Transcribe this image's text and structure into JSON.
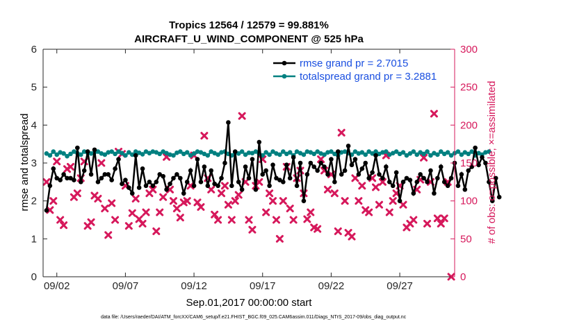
{
  "chart_data": {
    "type": "line",
    "title": "Tropics 12564 / 12579 = 99.881%",
    "subtitle": "AIRCRAFT_U_WIND_COMPONENT @ 525 hPa",
    "xlabel": "Sep.01,2017 00:00:00 start",
    "ylabel_left": "rmse and totalspread",
    "ylabel_right": "# of obs: o=possible; ×=assimilated",
    "footnote": "data file: /Users/raeder/DAI/ATM_forcXX/CAM6_setup/f.e21.FHIST_BGC.f09_025.CAM6assim.011/Diags_NTrS_2017-09/obs_diag_output.nc",
    "xlim": [
      1.0,
      31.0
    ],
    "ylim_left": [
      0,
      6
    ],
    "ylim_right": [
      0,
      300
    ],
    "x_ticks": [
      {
        "value": 2,
        "label": "09/02"
      },
      {
        "value": 7,
        "label": "09/07"
      },
      {
        "value": 12,
        "label": "09/12"
      },
      {
        "value": 17,
        "label": "09/17"
      },
      {
        "value": 22,
        "label": "09/22"
      },
      {
        "value": 27,
        "label": "09/27"
      }
    ],
    "y_ticks_left": [
      "0",
      "1",
      "2",
      "3",
      "4",
      "5",
      "6"
    ],
    "y_ticks_right": [
      "0",
      "50",
      "100",
      "150",
      "200",
      "250",
      "300"
    ],
    "colors": {
      "rmse": "#000000",
      "spread": "#008080",
      "obs": "#d6185b",
      "right_axis": "#d6185b",
      "legend_text": "#1a4fe0"
    },
    "series": [
      {
        "name": "rmse grand pr = 2.7015",
        "axis": "left",
        "x_start": 1.25,
        "x_step": 0.25,
        "values": [
          1.75,
          2.4,
          2.85,
          2.6,
          2.55,
          2.7,
          2.6,
          2.6,
          2.55,
          3.4,
          2.5,
          2.8,
          3.3,
          2.7,
          3.35,
          2.5,
          2.6,
          2.7,
          2.7,
          2.55,
          2.85,
          3.1,
          2.45,
          2.55,
          2.35,
          2.2,
          3.2,
          2.35,
          2.85,
          2.4,
          2.5,
          2.4,
          2.5,
          2.7,
          2.65,
          2.3,
          2.45,
          2.6,
          2.7,
          2.6,
          2.2,
          2.5,
          2.8,
          2.4,
          3.1,
          2.5,
          2.9,
          2.4,
          2.8,
          2.45,
          2.4,
          2.6,
          3.0,
          4.07,
          2.4,
          3.3,
          2.5,
          2.3,
          2.9,
          2.6,
          3.1,
          2.3,
          3.55,
          2.7,
          2.8,
          2.4,
          2.95,
          2.6,
          2.55,
          2.5,
          2.95,
          2.6,
          3.15,
          2.4,
          3.0,
          2.0,
          2.7,
          3.0,
          2.9,
          2.8,
          3.0,
          2.9,
          2.7,
          3.1,
          2.5,
          3.3,
          2.7,
          2.8,
          3.45,
          2.95,
          3.1,
          2.7,
          2.85,
          3.0,
          2.6,
          2.75,
          3.2,
          2.7,
          2.6,
          2.9,
          2.5,
          2.4,
          2.75,
          2.0,
          2.5,
          2.6,
          2.55,
          2.2,
          2.5,
          2.7,
          2.6,
          2.5,
          2.8,
          2.2,
          2.6,
          2.9,
          2.5,
          2.4,
          2.6,
          3.0,
          2.4,
          2.7,
          2.3,
          2.8,
          2.9,
          3.4,
          2.95,
          3.15,
          3.0,
          2.5,
          2.0,
          2.6,
          2.1
        ]
      },
      {
        "name": "totalspread grand pr = 3.2881",
        "axis": "left",
        "x_start": 1.25,
        "x_step": 0.25,
        "values": [
          3.25,
          3.2,
          3.3,
          3.22,
          3.28,
          3.25,
          3.18,
          3.24,
          3.3,
          3.26,
          3.22,
          3.3,
          3.27,
          3.25,
          3.28,
          3.3,
          3.25,
          3.22,
          3.28,
          3.3,
          3.24,
          3.3,
          3.26,
          3.2,
          3.28,
          3.22,
          3.3,
          3.27,
          3.23,
          3.3,
          3.26,
          3.3,
          3.28,
          3.24,
          3.3,
          3.26,
          3.22,
          3.2,
          3.27,
          3.3,
          3.24,
          3.28,
          3.2,
          3.25,
          3.3,
          3.28,
          3.24,
          3.2,
          3.3,
          3.26,
          3.22,
          3.28,
          3.3,
          3.24,
          3.2,
          3.28,
          3.25,
          3.3,
          3.22,
          3.27,
          3.26,
          3.3,
          3.24,
          3.2,
          3.28,
          3.22,
          3.3,
          3.25,
          3.22,
          3.3,
          3.24,
          3.28,
          3.2,
          3.3,
          3.26,
          3.22,
          3.3,
          3.28,
          3.24,
          3.3,
          3.25,
          3.22,
          3.28,
          3.3,
          3.24,
          3.2,
          3.28,
          3.3,
          3.26,
          3.22,
          3.3,
          3.25,
          3.28,
          3.22,
          3.3,
          3.25,
          3.3,
          3.24,
          3.28,
          3.3,
          3.22,
          3.26,
          3.3,
          3.24,
          3.28,
          3.2,
          3.25,
          3.3,
          3.22,
          3.28,
          3.24,
          3.3,
          3.2,
          3.26,
          3.22,
          3.3,
          3.24,
          3.28,
          3.2,
          3.26,
          3.3,
          3.22,
          3.28,
          3.24,
          3.3,
          3.2,
          3.26,
          3.22,
          3.28,
          3.3
        ]
      },
      {
        "name": "# of obs (possible/assimilated)",
        "axis": "right",
        "marker": "x",
        "points": [
          [
            1.25,
            125
          ],
          [
            1.5,
            88
          ],
          [
            1.75,
            100
          ],
          [
            2.0,
            152
          ],
          [
            2.25,
            75
          ],
          [
            2.5,
            68
          ],
          [
            2.75,
            142
          ],
          [
            3.0,
            145
          ],
          [
            3.25,
            105
          ],
          [
            3.5,
            110
          ],
          [
            3.75,
            130
          ],
          [
            4.0,
            152
          ],
          [
            4.25,
            67
          ],
          [
            4.5,
            72
          ],
          [
            4.75,
            107
          ],
          [
            5.0,
            103
          ],
          [
            5.25,
            150
          ],
          [
            5.5,
            90
          ],
          [
            5.75,
            55
          ],
          [
            6.0,
            97
          ],
          [
            6.25,
            75
          ],
          [
            6.5,
            165
          ],
          [
            6.75,
            162
          ],
          [
            7.0,
            120
          ],
          [
            7.25,
            67
          ],
          [
            7.5,
            84
          ],
          [
            7.75,
            103
          ],
          [
            8.0,
            76
          ],
          [
            8.25,
            70
          ],
          [
            8.5,
            85
          ],
          [
            8.75,
            110
          ],
          [
            9.0,
            115
          ],
          [
            9.25,
            60
          ],
          [
            9.5,
            85
          ],
          [
            9.75,
            105
          ],
          [
            10.0,
            158
          ],
          [
            10.25,
            115
          ],
          [
            10.5,
            100
          ],
          [
            10.75,
            90
          ],
          [
            11.0,
            78
          ],
          [
            11.25,
            98
          ],
          [
            11.5,
            100
          ],
          [
            11.75,
            120
          ],
          [
            12.0,
            160
          ],
          [
            12.25,
            98
          ],
          [
            12.5,
            92
          ],
          [
            12.75,
            186
          ],
          [
            13.0,
            130
          ],
          [
            13.25,
            115
          ],
          [
            13.5,
            82
          ],
          [
            13.75,
            75
          ],
          [
            14.0,
            110
          ],
          [
            14.25,
            120
          ],
          [
            14.5,
            95
          ],
          [
            14.75,
            75
          ],
          [
            15.0,
            100
          ],
          [
            15.25,
            108
          ],
          [
            15.5,
            212
          ],
          [
            15.75,
            125
          ],
          [
            16.0,
            75
          ],
          [
            16.25,
            62
          ],
          [
            16.5,
            120
          ],
          [
            16.75,
            125
          ],
          [
            17.0,
            155
          ],
          [
            17.25,
            85
          ],
          [
            17.5,
            110
          ],
          [
            17.75,
            100
          ],
          [
            18.0,
            75
          ],
          [
            18.25,
            50
          ],
          [
            18.5,
            100
          ],
          [
            18.75,
            145
          ],
          [
            19.0,
            90
          ],
          [
            19.25,
            75
          ],
          [
            19.5,
            130
          ],
          [
            19.75,
            140
          ],
          [
            20.0,
            110
          ],
          [
            20.25,
            76
          ],
          [
            20.5,
            85
          ],
          [
            20.75,
            65
          ],
          [
            21.0,
            63
          ],
          [
            21.25,
            155
          ],
          [
            21.5,
            140
          ],
          [
            21.75,
            115
          ],
          [
            22.0,
            135
          ],
          [
            22.25,
            110
          ],
          [
            22.5,
            60
          ],
          [
            22.75,
            190
          ],
          [
            23.0,
            100
          ],
          [
            23.25,
            58
          ],
          [
            23.5,
            53
          ],
          [
            23.75,
            130
          ],
          [
            24.0,
            100
          ],
          [
            24.25,
            120
          ],
          [
            24.5,
            88
          ],
          [
            24.75,
            85
          ],
          [
            25.0,
            130
          ],
          [
            25.25,
            118
          ],
          [
            25.5,
            95
          ],
          [
            25.75,
            125
          ],
          [
            26.0,
            160
          ],
          [
            26.25,
            85
          ],
          [
            26.5,
            100
          ],
          [
            26.75,
            110
          ],
          [
            27.0,
            120
          ],
          [
            27.25,
            95
          ],
          [
            27.5,
            65
          ],
          [
            27.75,
            70
          ],
          [
            28.0,
            75
          ],
          [
            28.25,
            115
          ],
          [
            28.5,
            128
          ],
          [
            28.75,
            157
          ],
          [
            29.0,
            70
          ],
          [
            29.25,
            125
          ],
          [
            29.5,
            215
          ],
          [
            29.75,
            77
          ],
          [
            30.0,
            70
          ],
          [
            30.25,
            77
          ],
          [
            30.5,
            125
          ],
          [
            30.75,
            0
          ]
        ]
      }
    ]
  }
}
